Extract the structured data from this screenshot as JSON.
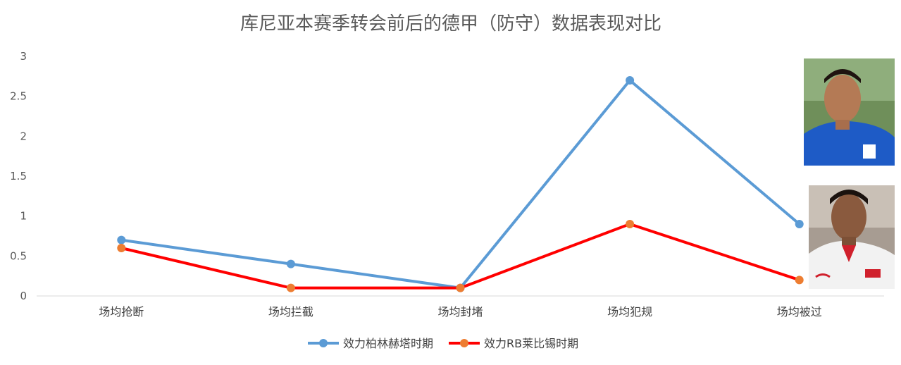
{
  "chart_data": {
    "type": "line",
    "title": "库尼亚本赛季转会前后的德甲（防守）数据表现对比",
    "categories": [
      "场均抢断",
      "场均拦截",
      "场均封堵",
      "场均犯规",
      "场均被过"
    ],
    "yticks": [
      "0",
      "0.5",
      "1",
      "1.5",
      "2",
      "2.5",
      "3"
    ],
    "ylim": [
      0,
      3
    ],
    "grid": false,
    "legend": "bottom",
    "series": [
      {
        "name": "效力柏林赫塔时期",
        "values": [
          0.7,
          0.4,
          0.1,
          2.7,
          0.9
        ],
        "color": "#5b9bd5",
        "marker_color": "#5b9bd5"
      },
      {
        "name": "效力RB莱比锡时期",
        "values": [
          0.6,
          0.1,
          0.1,
          0.9,
          0.2
        ],
        "color": "#ff0000",
        "marker_color": "#ed7d31"
      }
    ]
  },
  "photos": [
    {
      "name": "hertha-player-photo",
      "jersey_color": "#1e5bc6"
    },
    {
      "name": "leipzig-player-photo",
      "jersey_color": "#f2f2f2"
    }
  ]
}
